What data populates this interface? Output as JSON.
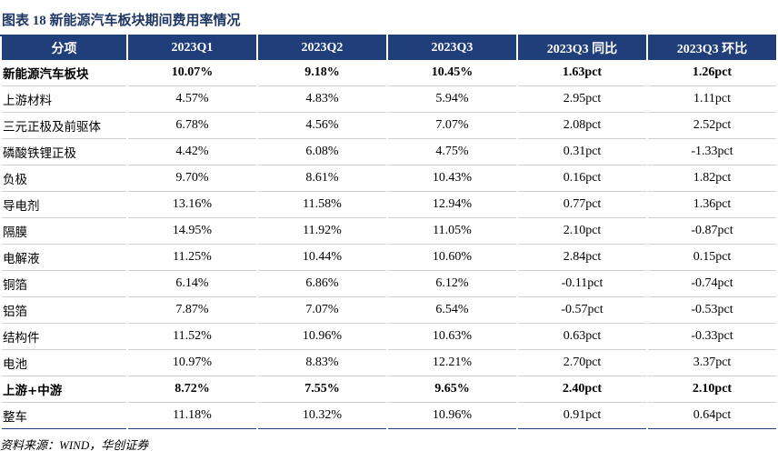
{
  "title": "图表 18  新能源汽车板块期间费用率情况",
  "table": {
    "headers": [
      "分项",
      "2023Q1",
      "2023Q2",
      "2023Q3",
      "2023Q3 同比",
      "2023Q3 环比"
    ],
    "rows": [
      {
        "name": "新能源汽车板块",
        "values": [
          "10.07%",
          "9.18%",
          "10.45%",
          "1.63pct",
          "1.26pct"
        ],
        "bold": true
      },
      {
        "name": "上游材料",
        "values": [
          "4.57%",
          "4.83%",
          "5.94%",
          "2.95pct",
          "1.11pct"
        ],
        "bold": false
      },
      {
        "name": "三元正极及前驱体",
        "values": [
          "6.78%",
          "4.56%",
          "7.07%",
          "2.08pct",
          "2.52pct"
        ],
        "bold": false
      },
      {
        "name": "磷酸铁锂正极",
        "values": [
          "4.42%",
          "6.08%",
          "4.75%",
          "0.31pct",
          "-1.33pct"
        ],
        "bold": false
      },
      {
        "name": "负极",
        "values": [
          "9.70%",
          "8.61%",
          "10.43%",
          "0.16pct",
          "1.82pct"
        ],
        "bold": false
      },
      {
        "name": "导电剂",
        "values": [
          "13.16%",
          "11.58%",
          "12.94%",
          "0.77pct",
          "1.36pct"
        ],
        "bold": false
      },
      {
        "name": "隔膜",
        "values": [
          "14.95%",
          "11.92%",
          "11.05%",
          "2.10pct",
          "-0.87pct"
        ],
        "bold": false
      },
      {
        "name": "电解液",
        "values": [
          "11.25%",
          "10.44%",
          "10.60%",
          "2.84pct",
          "0.15pct"
        ],
        "bold": false
      },
      {
        "name": "铜箔",
        "values": [
          "6.14%",
          "6.86%",
          "6.12%",
          "-0.11pct",
          "-0.74pct"
        ],
        "bold": false
      },
      {
        "name": "铝箔",
        "values": [
          "7.87%",
          "7.07%",
          "6.54%",
          "-0.57pct",
          "-0.53pct"
        ],
        "bold": false
      },
      {
        "name": "结构件",
        "values": [
          "11.52%",
          "10.96%",
          "10.63%",
          "0.63pct",
          "-0.33pct"
        ],
        "bold": false
      },
      {
        "name": "电池",
        "values": [
          "10.97%",
          "8.83%",
          "12.21%",
          "2.70pct",
          "3.37pct"
        ],
        "bold": false
      },
      {
        "name": "上游+中游",
        "values": [
          "8.72%",
          "7.55%",
          "9.65%",
          "2.40pct",
          "2.10pct"
        ],
        "bold": true
      },
      {
        "name": "整车",
        "values": [
          "11.18%",
          "10.32%",
          "10.96%",
          "0.91pct",
          "0.64pct"
        ],
        "bold": false
      }
    ]
  },
  "source": "资料来源：WIND，华创证券",
  "colors": {
    "header_bg": "#1f3e7a",
    "title": "#1f3864"
  }
}
